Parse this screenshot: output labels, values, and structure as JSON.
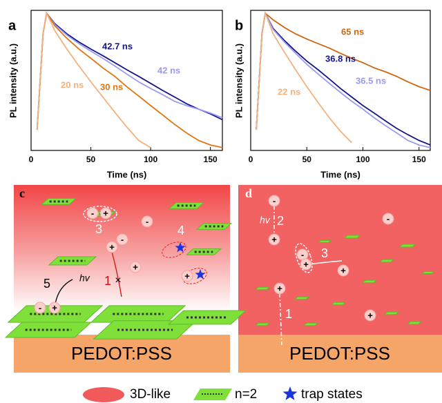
{
  "chart_data": [
    {
      "type": "line",
      "panel": "a",
      "xlabel": "Time (ns)",
      "ylabel": "PL intensity (a.u.)",
      "x": [
        5,
        10,
        13,
        20,
        30,
        40,
        50,
        60,
        70,
        80,
        90,
        100,
        110,
        120,
        130,
        140,
        150,
        160
      ],
      "xlim": [
        0,
        160
      ],
      "xticks": [
        0,
        50,
        100,
        150
      ],
      "ylim": [
        0.01,
        1.1
      ],
      "log_y": true,
      "series": [
        {
          "name": "42.7 ns",
          "color": "#14148a",
          "values": [
            0.02,
            0.5,
            1,
            0.7,
            0.5,
            0.38,
            0.3,
            0.24,
            0.19,
            0.15,
            0.12,
            0.095,
            0.075,
            0.06,
            0.048,
            0.04,
            0.034,
            0.028
          ]
        },
        {
          "name": "42 ns",
          "color": "#9a9af0",
          "values": [
            0.02,
            0.5,
            1,
            0.68,
            0.48,
            0.36,
            0.28,
            0.22,
            0.17,
            0.13,
            0.1,
            0.08,
            0.065,
            0.052,
            0.045,
            0.04,
            0.035,
            0.03
          ]
        },
        {
          "name": "30 ns",
          "color": "#e07410",
          "values": [
            0.02,
            0.5,
            1,
            0.65,
            0.43,
            0.3,
            0.22,
            0.16,
            0.12,
            0.085,
            0.062,
            0.045,
            0.033,
            0.024,
            0.018,
            0.014,
            0.012,
            0.011
          ]
        },
        {
          "name": "20 ns",
          "color": "#f5b07c",
          "values": [
            0.02,
            0.5,
            1,
            0.55,
            0.3,
            0.17,
            0.1,
            0.06,
            0.036,
            0.022,
            0.014,
            0.011,
            null,
            null,
            null,
            null,
            null,
            null
          ]
        }
      ]
    },
    {
      "type": "line",
      "panel": "b",
      "xlabel": "Time (ns)",
      "ylabel": "PL intensity (a.u.)",
      "x": [
        5,
        10,
        13,
        20,
        30,
        40,
        50,
        60,
        70,
        80,
        90,
        100,
        110,
        120,
        130,
        140,
        150,
        160
      ],
      "xlim": [
        0,
        160
      ],
      "xticks": [
        0,
        50,
        100,
        150
      ],
      "ylim": [
        0.01,
        1.1
      ],
      "log_y": true,
      "series": [
        {
          "name": "65 ns",
          "color": "#d0650f",
          "values": [
            0.02,
            0.5,
            1,
            0.8,
            0.62,
            0.5,
            0.42,
            0.36,
            0.31,
            0.26,
            0.22,
            0.19,
            0.16,
            0.14,
            0.12,
            0.1,
            0.085,
            0.075
          ]
        },
        {
          "name": "36.8 ns",
          "color": "#14148a",
          "values": [
            0.02,
            0.5,
            1,
            0.6,
            0.4,
            0.28,
            0.2,
            0.15,
            0.11,
            0.08,
            0.06,
            0.045,
            0.035,
            0.027,
            0.021,
            0.017,
            0.014,
            0.012
          ]
        },
        {
          "name": "36.5 ns",
          "color": "#9a9af0",
          "values": [
            0.02,
            0.5,
            1,
            0.58,
            0.38,
            0.26,
            0.18,
            0.13,
            0.095,
            0.07,
            0.052,
            0.04,
            0.03,
            0.023,
            0.018,
            0.014,
            0.012,
            0.011
          ]
        },
        {
          "name": "22 ns",
          "color": "#f5b07c",
          "values": [
            0.02,
            0.5,
            1,
            0.5,
            0.27,
            0.15,
            0.085,
            0.05,
            0.03,
            0.019,
            0.013,
            null,
            null,
            null,
            null,
            null,
            null,
            null
          ]
        }
      ]
    }
  ],
  "panels": [
    {
      "label": "c",
      "substrate": "PEDOT:PSS",
      "charges": [
        "-",
        "+",
        "-",
        "-",
        "+",
        "+",
        "+",
        "-",
        "+"
      ],
      "steps": [
        "3",
        "4",
        "5",
        "1"
      ],
      "photon": "hv",
      "blocked": "×"
    },
    {
      "label": "d",
      "substrate": "PEDOT:PSS",
      "charges": [
        "-",
        "+",
        "-",
        "-",
        "+",
        "+",
        "+",
        "+"
      ],
      "steps": [
        "2",
        "3",
        "1"
      ],
      "photon": "hv"
    }
  ],
  "legend": [
    "3D-like",
    "n=2",
    "trap states"
  ]
}
